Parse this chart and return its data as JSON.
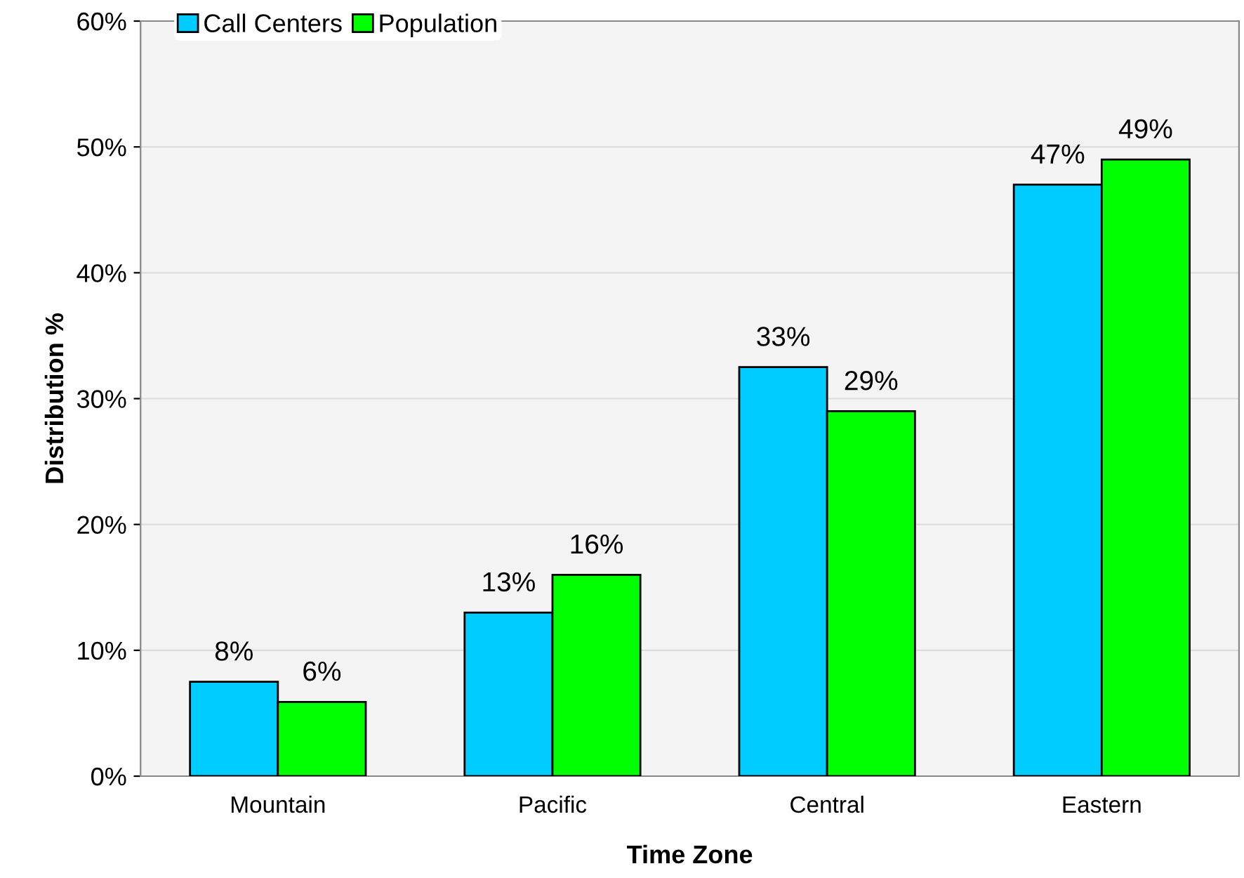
{
  "chart_data": {
    "type": "bar",
    "xlabel": "Time Zone",
    "ylabel": "Distribution %",
    "categories": [
      "Mountain",
      "Pacific",
      "Central",
      "Eastern"
    ],
    "series": [
      {
        "name": "Call Centers",
        "color": "#00ccff",
        "values": [
          7.5,
          13,
          32.5,
          47
        ],
        "value_labels": [
          "8%",
          "13%",
          "33%",
          "47%"
        ]
      },
      {
        "name": "Population",
        "color": "#00ff00",
        "values": [
          5.9,
          16,
          29,
          49
        ],
        "value_labels": [
          "6%",
          "16%",
          "29%",
          "49%"
        ]
      }
    ],
    "ylim": [
      0,
      60
    ],
    "yticks": [
      {
        "value": 0,
        "label": "0%"
      },
      {
        "value": 10,
        "label": "10%"
      },
      {
        "value": 20,
        "label": "20%"
      },
      {
        "value": 30,
        "label": "30%"
      },
      {
        "value": 40,
        "label": "40%"
      },
      {
        "value": 50,
        "label": "50%"
      },
      {
        "value": 60,
        "label": "60%"
      }
    ],
    "grid": "y",
    "legend": "top left"
  }
}
